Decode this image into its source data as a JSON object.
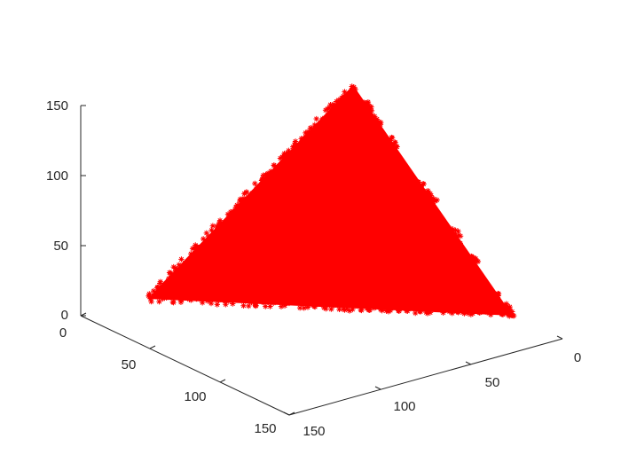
{
  "chart_data": {
    "type": "scatter",
    "subtype": "3d-scatter",
    "marker": "asterisk",
    "marker_color": "#ff0000",
    "grid": false,
    "view": "3d",
    "axes": {
      "x": {
        "ticks": [
          0,
          50,
          100,
          150
        ],
        "range": [
          0,
          150
        ]
      },
      "y": {
        "ticks": [
          0,
          50,
          100,
          150
        ],
        "range": [
          0,
          150
        ]
      },
      "z": {
        "ticks": [
          0,
          50,
          100,
          150
        ],
        "range": [
          0,
          150
        ]
      }
    },
    "series": [
      {
        "points": [
          [
            0,
            0,
            0
          ],
          [
            150,
            0,
            0
          ],
          [
            0,
            150,
            0
          ],
          [
            0,
            0,
            150
          ]
        ]
      }
    ]
  }
}
